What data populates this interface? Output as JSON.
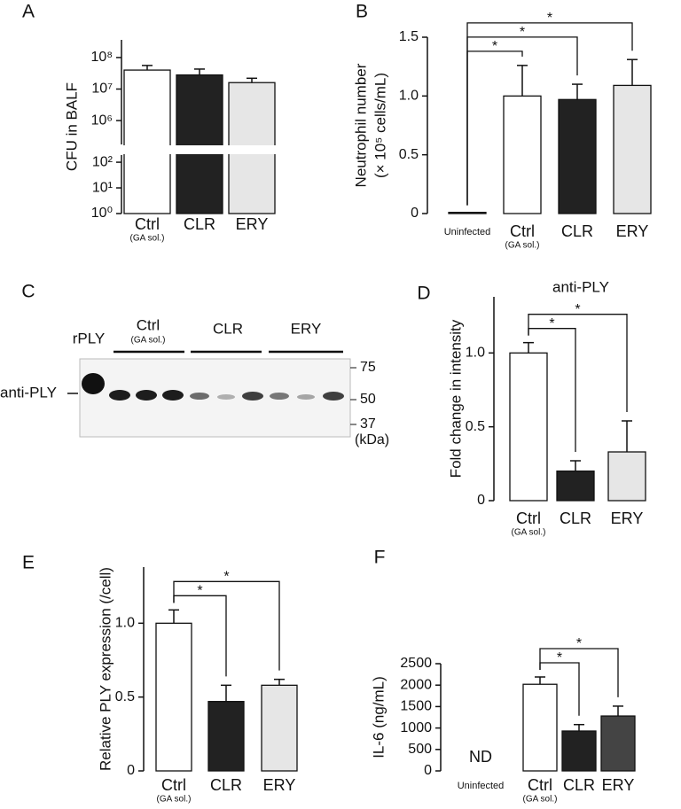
{
  "chart_data": [
    {
      "type": "bar",
      "panel": "A",
      "ylabel": [
        "CFU in BALF"
      ],
      "log_scale": true,
      "axis_break": [
        190,
        175000
      ],
      "categories": [
        "Ctrl",
        "CLR",
        "ERY"
      ],
      "category_sublabels": [
        "(GA sol.)",
        null,
        null
      ],
      "values": [
        40000000,
        28000000,
        16000000
      ],
      "errors": [
        16000000,
        15000000,
        6000000
      ],
      "colors": [
        "#ffffff",
        "#222222",
        "#e6e6e6"
      ],
      "ylim": [
        1,
        363000000
      ],
      "yticks": [
        {
          "value": 1,
          "label": "10⁰"
        },
        {
          "value": 10,
          "label": "10¹"
        },
        {
          "value": 100,
          "label": "10²"
        },
        {
          "value": 1000000,
          "label": "10⁶"
        },
        {
          "value": 10000000,
          "label": "10⁷"
        },
        {
          "value": 100000000,
          "label": "10⁸"
        }
      ]
    },
    {
      "type": "bar",
      "panel": "B",
      "ylabel": [
        "Neutrophil number",
        "(× 10⁵ cells/mL)"
      ],
      "categories": [
        "Uninfected",
        "Ctrl",
        "CLR",
        "ERY"
      ],
      "category_sublabels": [
        null,
        "(GA sol.)",
        null,
        null
      ],
      "values": [
        0.01,
        1.0,
        0.97,
        1.09
      ],
      "errors": [
        null,
        0.26,
        0.13,
        0.22
      ],
      "colors": [
        "#ffffff",
        "#ffffff",
        "#222222",
        "#e6e6e6"
      ],
      "ylim": [
        0,
        1.5
      ],
      "yticks": [
        0,
        0.5,
        {
          "value": 1,
          "label": "1.0"
        },
        1.5
      ],
      "annotations": [
        {
          "label": "*",
          "between": [
            "Uninfected",
            "Ctrl"
          ]
        },
        {
          "label": "*",
          "between": [
            "Uninfected",
            "CLR"
          ]
        },
        {
          "label": "*",
          "between": [
            "Uninfected",
            "ERY"
          ]
        }
      ]
    },
    {
      "type": "bar",
      "panel": "D",
      "title": "anti-PLY",
      "ylabel": [
        "Fold change in intensity"
      ],
      "categories": [
        "Ctrl",
        "CLR",
        "ERY"
      ],
      "category_sublabels": [
        "(GA sol.)",
        null,
        null
      ],
      "values": [
        1.0,
        0.2,
        0.33
      ],
      "errors": [
        0.07,
        0.07,
        0.21
      ],
      "colors": [
        "#ffffff",
        "#222222",
        "#e6e6e6"
      ],
      "ylim": [
        0,
        1.38
      ],
      "yticks": [
        0,
        0.5,
        {
          "value": 1,
          "label": "1.0"
        }
      ],
      "annotations": [
        {
          "label": "*",
          "between": [
            "Ctrl",
            "CLR"
          ]
        },
        {
          "label": "*",
          "between": [
            "Ctrl",
            "ERY"
          ]
        }
      ]
    },
    {
      "type": "bar",
      "panel": "E",
      "ylabel": [
        "Relative PLY expression (/cell)"
      ],
      "categories": [
        "Ctrl",
        "CLR",
        "ERY"
      ],
      "category_sublabels": [
        "(GA sol.)",
        null,
        null
      ],
      "values": [
        1.0,
        0.47,
        0.58
      ],
      "errors": [
        0.09,
        0.11,
        0.04
      ],
      "colors": [
        "#ffffff",
        "#222222",
        "#e6e6e6"
      ],
      "ylim": [
        0,
        1.38
      ],
      "yticks": [
        0,
        0.5,
        {
          "value": 1,
          "label": "1.0"
        }
      ],
      "annotations": [
        {
          "label": "*",
          "between": [
            "Ctrl",
            "CLR"
          ]
        },
        {
          "label": "*",
          "between": [
            "Ctrl",
            "ERY"
          ]
        }
      ]
    },
    {
      "type": "bar",
      "panel": "F",
      "ylabel": [
        "IL-6 (ng/mL)"
      ],
      "categories": [
        "Uninfected",
        "Ctrl",
        "CLR",
        "ERY"
      ],
      "category_sublabels": [
        null,
        "(GA sol.)",
        null,
        null
      ],
      "values": [
        null,
        2020,
        930,
        1280
      ],
      "errors": [
        null,
        170,
        150,
        230
      ],
      "value_labels": [
        "ND",
        null,
        null,
        null
      ],
      "colors": [
        "#ffffff",
        "#ffffff",
        "#222222",
        "#444444"
      ],
      "ylim": [
        0,
        2500
      ],
      "yticks": [
        0,
        500,
        1000,
        1500,
        2000,
        2500
      ],
      "annotations": [
        {
          "label": "*",
          "between": [
            "Ctrl",
            "CLR"
          ]
        },
        {
          "label": "*",
          "between": [
            "Ctrl",
            "ERY"
          ]
        }
      ]
    }
  ],
  "blot": {
    "panel": "C",
    "marker_label": "rPLY",
    "groups": [
      {
        "name": "Ctrl",
        "sublabel": "(GA sol.)"
      },
      {
        "name": "CLR"
      },
      {
        "name": "ERY"
      }
    ],
    "band_label": "anti-PLY",
    "ladder": [
      "75",
      "50",
      "37"
    ],
    "ladder_unit": "(kDa)"
  }
}
